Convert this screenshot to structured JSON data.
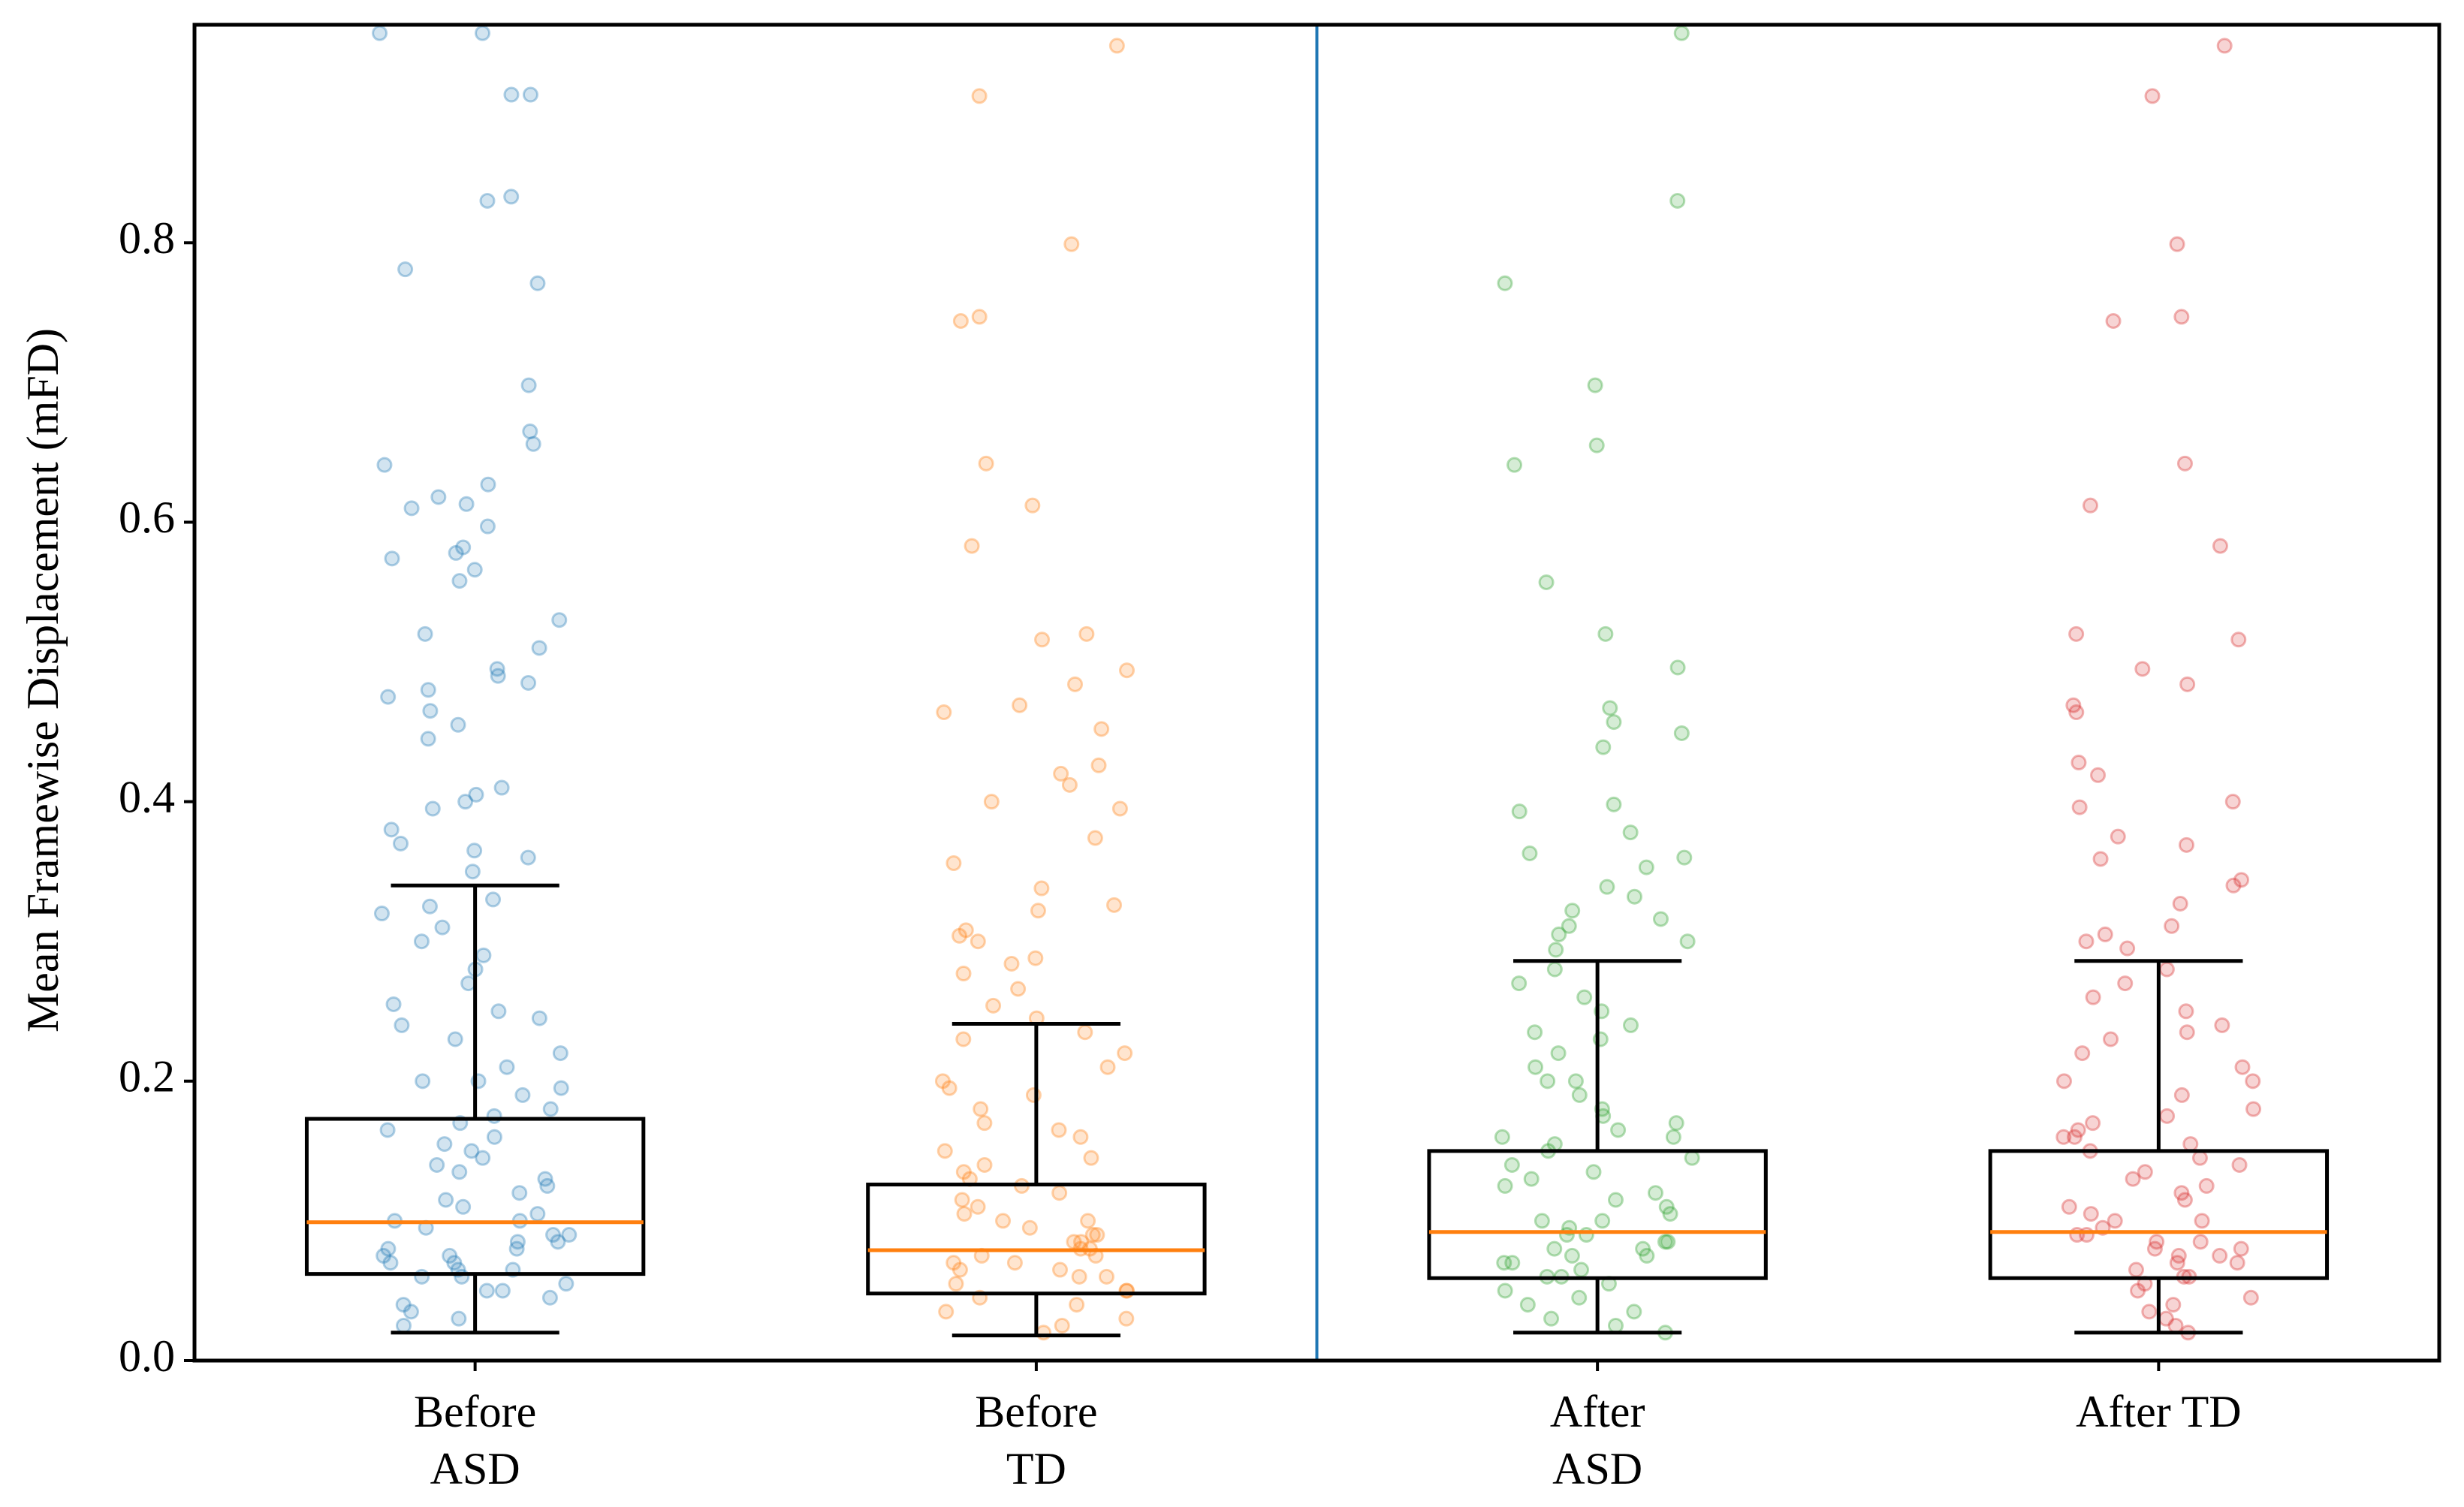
{
  "chart_data": {
    "type": "box",
    "y_label": "Mean Framewise Displacement (mFD)",
    "categories": [
      "Before ASD",
      "Before TD",
      "After ASD",
      "After TD"
    ],
    "colors": [
      "#1f77b4",
      "#ff7f0e",
      "#2ca02c",
      "#d62728"
    ],
    "median_color": "#ff7f0e",
    "box_color": "#000000",
    "divider_color": "#1f77b4",
    "ylim": [
      0,
      0.956
    ],
    "yticks": [
      {
        "value": 0,
        "label": "0.0"
      },
      0.2,
      0.4,
      0.6,
      0.8
    ],
    "boxes": [
      {
        "whislo": 0.02,
        "q1": 0.062,
        "med": 0.099,
        "q3": 0.173,
        "whishi": 0.34
      },
      {
        "whislo": 0.018,
        "q1": 0.048,
        "med": 0.079,
        "q3": 0.126,
        "whishi": 0.241
      },
      {
        "whislo": 0.02,
        "q1": 0.059,
        "med": 0.092,
        "q3": 0.15,
        "whishi": 0.286
      },
      {
        "whislo": 0.02,
        "q1": 0.059,
        "med": 0.092,
        "q3": 0.15,
        "whishi": 0.286
      }
    ],
    "points": [
      [
        0.95,
        0.95,
        0.906,
        0.906,
        0.833,
        0.83,
        0.781,
        0.771,
        0.698,
        0.665,
        0.656,
        0.641,
        0.627,
        0.618,
        0.613,
        0.61,
        0.597,
        0.582,
        0.578,
        0.574,
        0.566,
        0.558,
        0.53,
        0.52,
        0.51,
        0.495,
        0.49,
        0.485,
        0.48,
        0.475,
        0.465,
        0.455,
        0.445,
        0.41,
        0.405,
        0.4,
        0.395,
        0.38,
        0.37,
        0.365,
        0.36,
        0.35,
        0.33,
        0.325,
        0.32,
        0.31,
        0.3,
        0.29,
        0.28,
        0.27,
        0.255,
        0.25,
        0.245,
        0.24,
        0.23,
        0.22,
        0.21,
        0.2,
        0.2,
        0.195,
        0.19,
        0.18,
        0.175,
        0.17,
        0.165,
        0.16,
        0.155,
        0.15,
        0.145,
        0.14,
        0.135,
        0.13,
        0.125,
        0.12,
        0.115,
        0.11,
        0.105,
        0.1,
        0.1,
        0.095,
        0.09,
        0.09,
        0.085,
        0.085,
        0.08,
        0.08,
        0.075,
        0.075,
        0.07,
        0.07,
        0.065,
        0.065,
        0.06,
        0.06,
        0.055,
        0.05,
        0.05,
        0.045,
        0.04,
        0.035,
        0.03,
        0.025
      ],
      [
        0.941,
        0.905,
        0.799,
        0.747,
        0.744,
        0.642,
        0.612,
        0.583,
        0.52,
        0.516,
        0.494,
        0.484,
        0.469,
        0.464,
        0.452,
        0.426,
        0.42,
        0.412,
        0.4,
        0.395,
        0.374,
        0.356,
        0.338,
        0.326,
        0.322,
        0.308,
        0.304,
        0.3,
        0.288,
        0.284,
        0.277,
        0.266,
        0.254,
        0.245,
        0.235,
        0.23,
        0.22,
        0.21,
        0.2,
        0.195,
        0.19,
        0.18,
        0.17,
        0.165,
        0.16,
        0.15,
        0.145,
        0.14,
        0.135,
        0.13,
        0.125,
        0.12,
        0.115,
        0.11,
        0.105,
        0.1,
        0.1,
        0.095,
        0.09,
        0.09,
        0.085,
        0.085,
        0.08,
        0.08,
        0.075,
        0.075,
        0.07,
        0.07,
        0.065,
        0.065,
        0.06,
        0.06,
        0.055,
        0.05,
        0.05,
        0.045,
        0.04,
        0.035,
        0.03,
        0.025,
        0.02
      ],
      [
        0.95,
        0.83,
        0.771,
        0.698,
        0.655,
        0.641,
        0.557,
        0.52,
        0.496,
        0.467,
        0.457,
        0.449,
        0.439,
        0.398,
        0.393,
        0.378,
        0.363,
        0.36,
        0.353,
        0.339,
        0.332,
        0.322,
        0.316,
        0.311,
        0.305,
        0.3,
        0.294,
        0.28,
        0.27,
        0.26,
        0.25,
        0.24,
        0.235,
        0.23,
        0.22,
        0.21,
        0.2,
        0.2,
        0.19,
        0.18,
        0.175,
        0.17,
        0.165,
        0.16,
        0.16,
        0.155,
        0.15,
        0.145,
        0.14,
        0.135,
        0.13,
        0.125,
        0.12,
        0.115,
        0.11,
        0.105,
        0.1,
        0.1,
        0.095,
        0.09,
        0.09,
        0.085,
        0.085,
        0.08,
        0.08,
        0.075,
        0.075,
        0.07,
        0.07,
        0.065,
        0.06,
        0.06,
        0.055,
        0.05,
        0.045,
        0.04,
        0.035,
        0.03,
        0.025,
        0.02
      ],
      [
        0.941,
        0.905,
        0.799,
        0.747,
        0.744,
        0.642,
        0.612,
        0.583,
        0.52,
        0.516,
        0.495,
        0.484,
        0.469,
        0.464,
        0.428,
        0.419,
        0.4,
        0.396,
        0.375,
        0.369,
        0.359,
        0.344,
        0.34,
        0.327,
        0.311,
        0.305,
        0.3,
        0.295,
        0.28,
        0.27,
        0.26,
        0.25,
        0.24,
        0.235,
        0.23,
        0.22,
        0.21,
        0.2,
        0.2,
        0.19,
        0.18,
        0.175,
        0.17,
        0.165,
        0.16,
        0.16,
        0.155,
        0.15,
        0.145,
        0.14,
        0.135,
        0.13,
        0.125,
        0.12,
        0.115,
        0.11,
        0.105,
        0.1,
        0.1,
        0.095,
        0.09,
        0.09,
        0.085,
        0.085,
        0.08,
        0.08,
        0.075,
        0.075,
        0.07,
        0.07,
        0.065,
        0.06,
        0.06,
        0.055,
        0.05,
        0.045,
        0.04,
        0.035,
        0.03,
        0.025,
        0.02
      ]
    ]
  }
}
